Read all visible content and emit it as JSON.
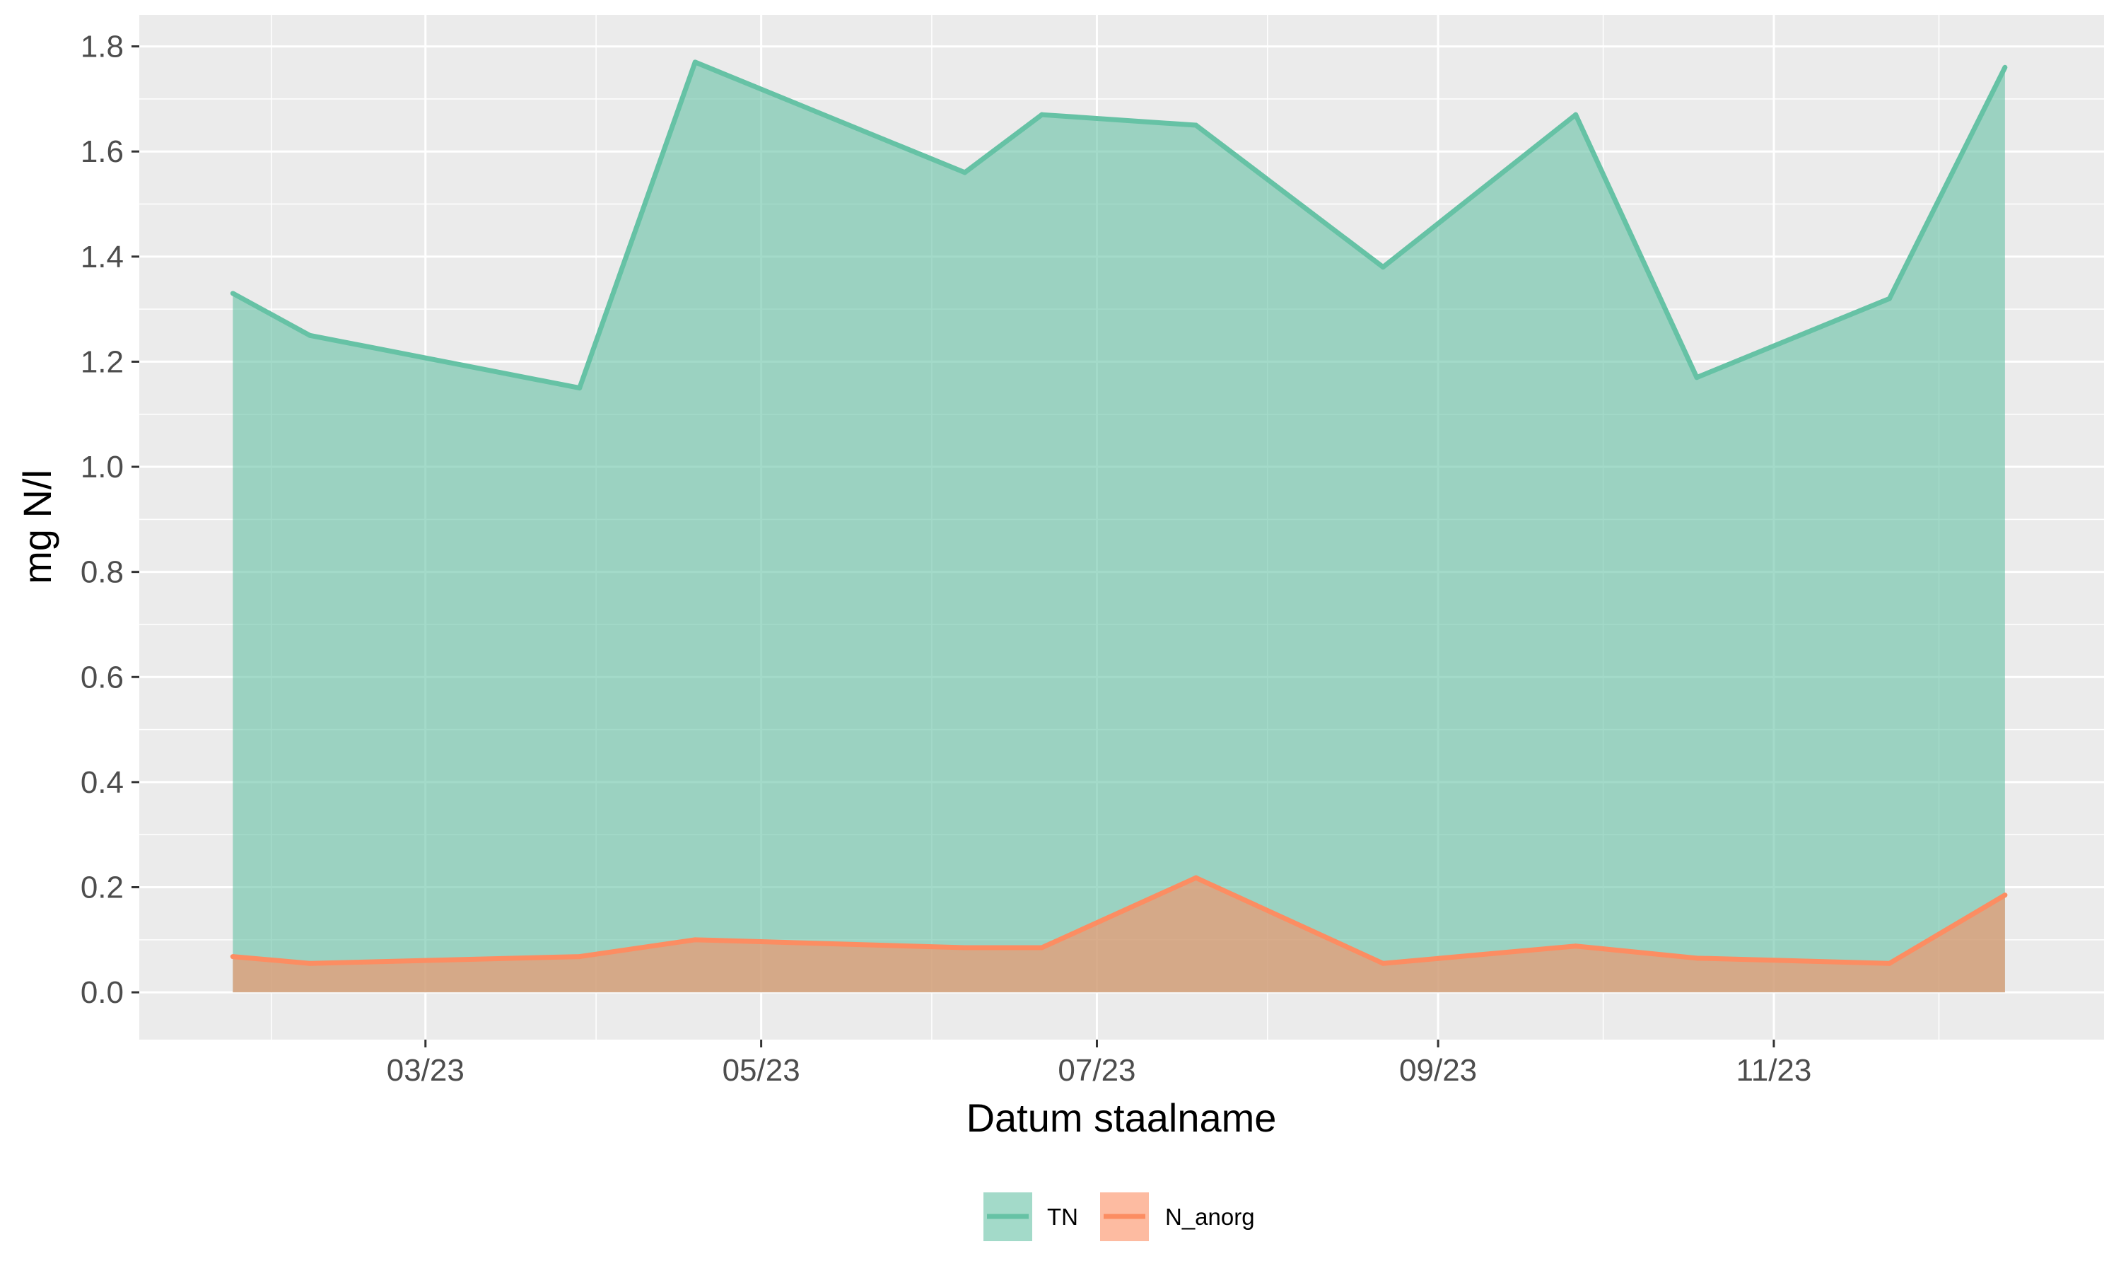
{
  "chart_data": {
    "type": "area",
    "xlabel": "Datum staalname",
    "ylabel": "mg N/l",
    "ylim": [
      -0.09,
      1.86
    ],
    "y_ticks": [
      0.0,
      0.2,
      0.4,
      0.6,
      0.8,
      1.0,
      1.2,
      1.4,
      1.6,
      1.8
    ],
    "y_tick_labels": [
      "0.0",
      "0.2",
      "0.4",
      "0.6",
      "0.8",
      "1.0",
      "1.2",
      "1.4",
      "1.6",
      "1.8"
    ],
    "xlim": [
      "2023-01-08",
      "2023-12-31"
    ],
    "x_ticks": [
      "2023-03-01",
      "2023-05-01",
      "2023-07-01",
      "2023-09-01",
      "2023-11-01"
    ],
    "x_tick_labels": [
      "03/23",
      "05/23",
      "07/23",
      "09/23",
      "11/23"
    ],
    "x_minor_ticks": [
      "2023-02-01",
      "2023-04-01",
      "2023-06-01",
      "2023-08-01",
      "2023-10-01",
      "2023-12-01"
    ],
    "grid": true,
    "legend_position": "bottom",
    "series": [
      {
        "name": "TN",
        "color": "#66c2a5",
        "points": [
          [
            "2023-01-25",
            1.33
          ],
          [
            "2023-02-08",
            1.25
          ],
          [
            "2023-03-29",
            1.15
          ],
          [
            "2023-04-19",
            1.77
          ],
          [
            "2023-06-07",
            1.56
          ],
          [
            "2023-06-21",
            1.67
          ],
          [
            "2023-07-19",
            1.65
          ],
          [
            "2023-08-22",
            1.38
          ],
          [
            "2023-09-26",
            1.67
          ],
          [
            "2023-10-18",
            1.17
          ],
          [
            "2023-11-22",
            1.32
          ],
          [
            "2023-12-13",
            1.76
          ]
        ]
      },
      {
        "name": "N_anorg",
        "color": "#fc8d62",
        "points": [
          [
            "2023-01-25",
            0.068
          ],
          [
            "2023-02-08",
            0.055
          ],
          [
            "2023-03-29",
            0.068
          ],
          [
            "2023-04-19",
            0.1
          ],
          [
            "2023-06-07",
            0.085
          ],
          [
            "2023-06-21",
            0.085
          ],
          [
            "2023-07-19",
            0.218
          ],
          [
            "2023-08-22",
            0.055
          ],
          [
            "2023-09-26",
            0.088
          ],
          [
            "2023-10-18",
            0.065
          ],
          [
            "2023-11-22",
            0.055
          ],
          [
            "2023-12-13",
            0.185
          ]
        ]
      }
    ]
  }
}
